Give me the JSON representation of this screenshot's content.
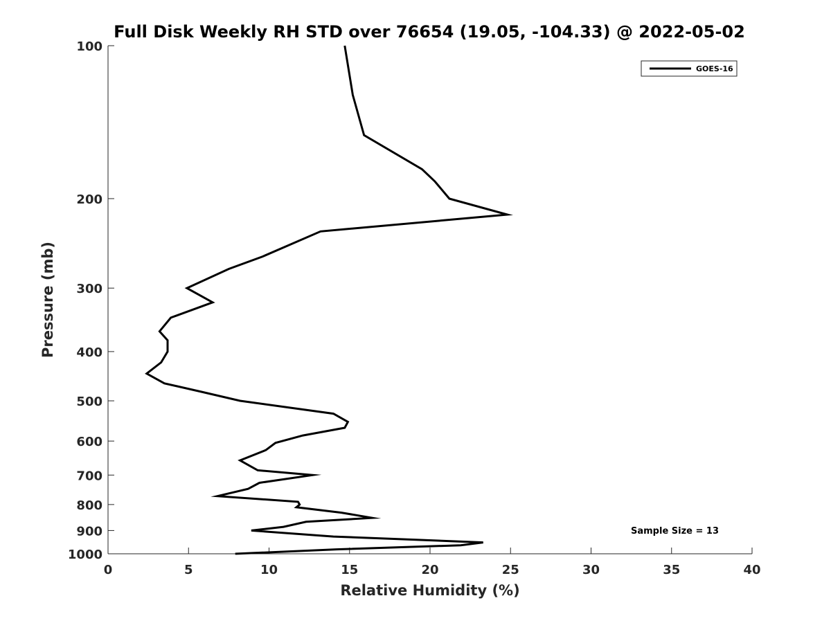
{
  "chart_data": {
    "type": "line",
    "title": "Full Disk Weekly RH STD over 76654 (19.05, -104.33) @ 2022-05-02",
    "xlabel": "Relative Humidity (%)",
    "ylabel": "Pressure (mb)",
    "xlim": [
      0,
      40
    ],
    "ylim": [
      100,
      1000
    ],
    "y_scale": "log",
    "y_reversed": true,
    "xticks": [
      0,
      5,
      10,
      15,
      20,
      25,
      30,
      35,
      40
    ],
    "yticks": [
      100,
      200,
      300,
      400,
      500,
      600,
      700,
      800,
      900,
      1000
    ],
    "grid": false,
    "legend_position": "top-right",
    "annotation": "Sample Size = 13",
    "series": [
      {
        "name": "GOES-16",
        "color": "#000000",
        "points": [
          [
            14.7,
            100
          ],
          [
            15.2,
            125
          ],
          [
            15.9,
            150
          ],
          [
            19.5,
            175
          ],
          [
            20.3,
            185
          ],
          [
            21.2,
            200
          ],
          [
            24.8,
            215
          ],
          [
            13.2,
            232
          ],
          [
            9.6,
            260
          ],
          [
            7.5,
            275
          ],
          [
            4.9,
            300
          ],
          [
            6.5,
            320
          ],
          [
            3.9,
            343
          ],
          [
            3.2,
            365
          ],
          [
            3.7,
            380
          ],
          [
            3.7,
            400
          ],
          [
            3.3,
            420
          ],
          [
            2.4,
            442
          ],
          [
            3.5,
            462
          ],
          [
            5.8,
            480
          ],
          [
            8.2,
            500
          ],
          [
            14.0,
            530
          ],
          [
            14.9,
            550
          ],
          [
            14.7,
            565
          ],
          [
            12.1,
            585
          ],
          [
            10.4,
            605
          ],
          [
            9.8,
            625
          ],
          [
            8.2,
            655
          ],
          [
            9.3,
            685
          ],
          [
            12.7,
            700
          ],
          [
            9.4,
            725
          ],
          [
            8.7,
            745
          ],
          [
            6.8,
            770
          ],
          [
            11.8,
            790
          ],
          [
            11.9,
            800
          ],
          [
            11.7,
            810
          ],
          [
            14.5,
            830
          ],
          [
            16.4,
            850
          ],
          [
            12.3,
            865
          ],
          [
            10.9,
            885
          ],
          [
            8.9,
            900
          ],
          [
            14.0,
            925
          ],
          [
            23.3,
            950
          ],
          [
            21.9,
            962
          ],
          [
            14.2,
            980
          ],
          [
            7.9,
            1000
          ]
        ]
      }
    ]
  },
  "legend": {
    "entries": [
      "GOES-16"
    ]
  }
}
